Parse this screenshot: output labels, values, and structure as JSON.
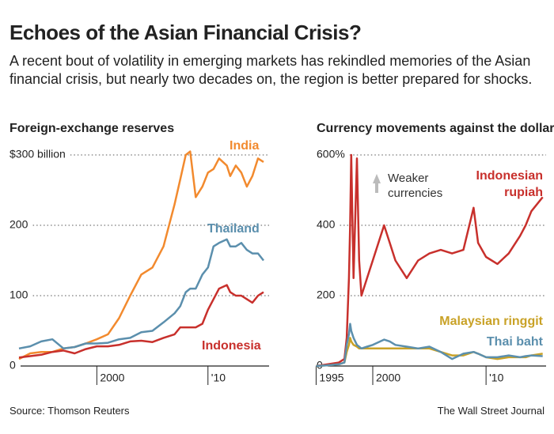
{
  "title": "Echoes of the Asian Financial Crisis?",
  "subtitle": "A recent bout of volatility in emerging markets has rekindled memories of the Asian financial crisis, but nearly two decades on, the region is better prepared for shocks.",
  "source": "Source: Thomson Reuters",
  "credit": "The Wall Street Journal",
  "chart_data": [
    {
      "type": "line",
      "title": "Foreign-exchange reserves",
      "x": [
        1993,
        1994,
        1995,
        1996,
        1997,
        1998,
        1999,
        2000,
        2001,
        2002,
        2003,
        2004,
        2005,
        2006,
        2007,
        2007.5,
        2008,
        2008.4,
        2008.9,
        2009.5,
        2010,
        2010.5,
        2011,
        2011.7,
        2012,
        2012.5,
        2013,
        2013.5,
        2014,
        2014.5,
        2015
      ],
      "series": [
        {
          "name": "India",
          "color": "#f28a2e",
          "values": [
            10,
            18,
            20,
            20,
            25,
            27,
            32,
            38,
            45,
            68,
            100,
            130,
            140,
            170,
            230,
            265,
            300,
            305,
            240,
            255,
            275,
            280,
            295,
            285,
            270,
            285,
            275,
            255,
            270,
            295,
            290
          ]
        },
        {
          "name": "Thailand",
          "color": "#5b8fad",
          "values": [
            25,
            28,
            35,
            38,
            25,
            27,
            32,
            32,
            33,
            38,
            40,
            48,
            50,
            62,
            75,
            85,
            105,
            110,
            110,
            130,
            140,
            170,
            175,
            180,
            170,
            170,
            175,
            165,
            160,
            160,
            150
          ]
        },
        {
          "name": "Indonesia",
          "color": "#c8302c",
          "values": [
            12,
            14,
            16,
            20,
            22,
            18,
            24,
            28,
            28,
            30,
            35,
            36,
            34,
            40,
            45,
            55,
            55,
            55,
            55,
            60,
            80,
            95,
            110,
            115,
            105,
            100,
            100,
            95,
            90,
            100,
            105
          ]
        }
      ],
      "xlim": [
        1992,
        2015.5
      ],
      "xticks": [
        2000,
        {
          "value": 2010,
          "label": "'10"
        }
      ],
      "ylim": [
        0,
        300
      ],
      "yticks": [
        0,
        100,
        200,
        {
          "value": 300,
          "label": "$300 billion"
        }
      ],
      "grid": true
    },
    {
      "type": "line",
      "title": "Currency movements against the dollar",
      "annotations": [
        "Weaker currencies"
      ],
      "x": [
        1995,
        1996,
        1997,
        1997.5,
        1997.7,
        1997.9,
        1998,
        1998.1,
        1998.3,
        1998.6,
        1998.8,
        1999,
        1999.5,
        2000,
        2001,
        2001.5,
        2002,
        2003,
        2004,
        2005,
        2006,
        2007,
        2008,
        2008.9,
        2009.3,
        2010,
        2011,
        2012,
        2013,
        2013.5,
        2014,
        2015
      ],
      "series": [
        {
          "name": "Indonesian rupiah",
          "color": "#c8302c",
          "values": [
            0,
            5,
            10,
            20,
            80,
            250,
            400,
            600,
            250,
            590,
            300,
            200,
            250,
            300,
            400,
            350,
            300,
            250,
            300,
            320,
            330,
            320,
            330,
            450,
            350,
            310,
            290,
            320,
            370,
            400,
            440,
            480
          ]
        },
        {
          "name": "Malaysian ringgit",
          "color": "#c9a227",
          "values": [
            0,
            2,
            5,
            10,
            40,
            60,
            80,
            70,
            60,
            55,
            50,
            50,
            50,
            50,
            50,
            50,
            50,
            50,
            50,
            50,
            40,
            30,
            30,
            40,
            35,
            25,
            20,
            25,
            25,
            25,
            30,
            35
          ]
        },
        {
          "name": "Thai baht",
          "color": "#5b8fad",
          "values": [
            0,
            2,
            5,
            10,
            60,
            90,
            120,
            100,
            80,
            60,
            55,
            50,
            55,
            60,
            75,
            70,
            60,
            55,
            50,
            55,
            40,
            20,
            35,
            40,
            35,
            25,
            25,
            30,
            25,
            28,
            30,
            28
          ]
        }
      ],
      "xlim": [
        1994.9,
        2015.3
      ],
      "xticks": [
        1995,
        2000,
        {
          "value": 2010,
          "label": "'10"
        }
      ],
      "ylim": [
        0,
        600
      ],
      "yticks": [
        0,
        200,
        400,
        {
          "value": 600,
          "label": "600%"
        }
      ],
      "grid": true
    }
  ]
}
